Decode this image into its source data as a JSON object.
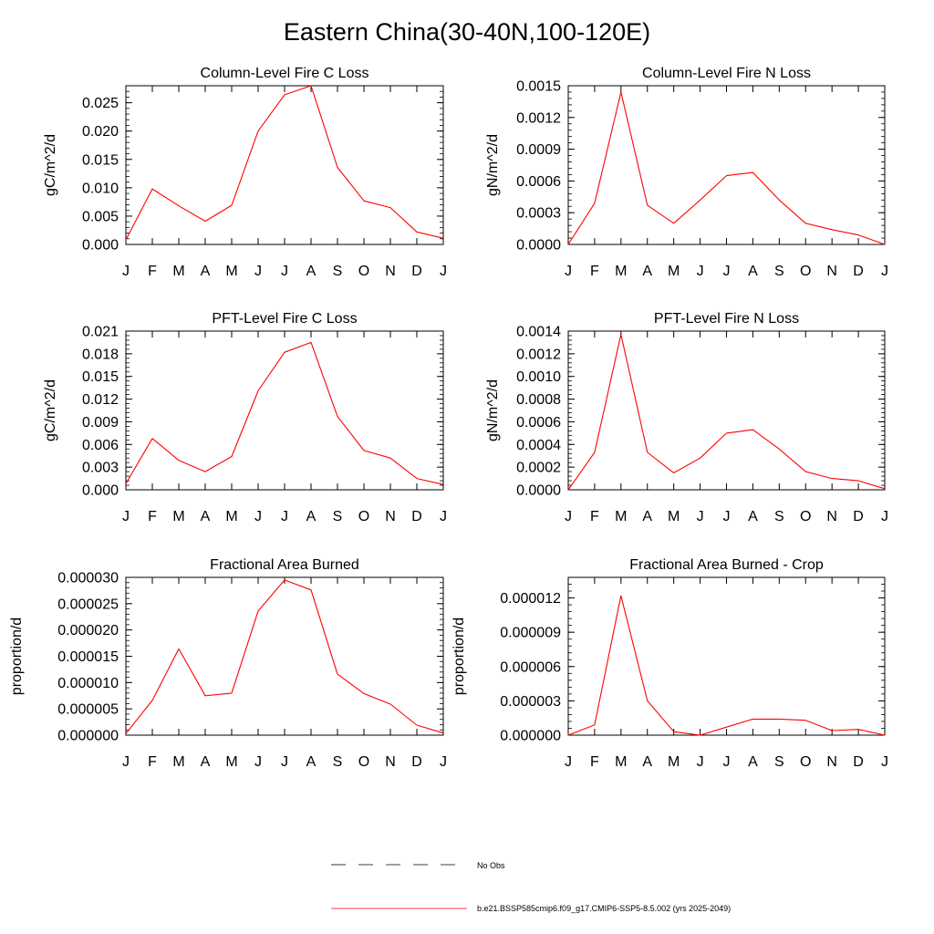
{
  "title": "Eastern China(30-40N,100-120E)",
  "legend": {
    "entries": [
      {
        "label": "No Obs",
        "style": "dashed",
        "color": "#000000"
      },
      {
        "label": "b.e21.BSSP585cmip6.f09_g17.CMIP6-SSP5-8.5.002 (yrs 2025-2049)",
        "style": "solid",
        "color": "#ff0000"
      }
    ]
  },
  "chart_data": [
    {
      "type": "line",
      "title": "Column-Level Fire C Loss",
      "ylabel": "gC/m^2/d",
      "xlabel": "",
      "categories": [
        "J",
        "F",
        "M",
        "A",
        "M",
        "J",
        "J",
        "A",
        "S",
        "O",
        "N",
        "D",
        "J"
      ],
      "ylim": [
        0,
        0.028
      ],
      "yticks": [
        "0.000",
        "0.005",
        "0.010",
        "0.015",
        "0.020",
        "0.025"
      ],
      "ytick_values": [
        0,
        0.005,
        0.01,
        0.015,
        0.02,
        0.025
      ],
      "series": [
        {
          "color": "#ff0000",
          "values": [
            0.0008,
            0.0098,
            0.0068,
            0.0041,
            0.0069,
            0.02,
            0.0264,
            0.028,
            0.0136,
            0.0077,
            0.0065,
            0.0022,
            0.0011
          ]
        }
      ]
    },
    {
      "type": "line",
      "title": "Column-Level Fire N Loss",
      "ylabel": "gN/m^2/d",
      "xlabel": "",
      "categories": [
        "J",
        "F",
        "M",
        "A",
        "M",
        "J",
        "J",
        "A",
        "S",
        "O",
        "N",
        "D",
        "J"
      ],
      "ylim": [
        0,
        0.0015
      ],
      "yticks": [
        "0.0000",
        "0.0003",
        "0.0006",
        "0.0009",
        "0.0012",
        "0.0015"
      ],
      "ytick_values": [
        0,
        0.0003,
        0.0006,
        0.0009,
        0.0012,
        0.0015
      ],
      "series": [
        {
          "color": "#ff0000",
          "values": [
            0.0,
            0.00039,
            0.00144,
            0.00037,
            0.0002,
            0.00042,
            0.00065,
            0.00068,
            0.00042,
            0.0002,
            0.00014,
            9e-05,
            0.0
          ]
        }
      ]
    },
    {
      "type": "line",
      "title": "PFT-Level Fire C Loss",
      "ylabel": "gC/m^2/d",
      "xlabel": "",
      "categories": [
        "J",
        "F",
        "M",
        "A",
        "M",
        "J",
        "J",
        "A",
        "S",
        "O",
        "N",
        "D",
        "J"
      ],
      "ylim": [
        0,
        0.021
      ],
      "yticks": [
        "0.000",
        "0.003",
        "0.006",
        "0.009",
        "0.012",
        "0.015",
        "0.018",
        "0.021"
      ],
      "ytick_values": [
        0,
        0.003,
        0.006,
        0.009,
        0.012,
        0.015,
        0.018,
        0.021
      ],
      "series": [
        {
          "color": "#ff0000",
          "values": [
            0.0008,
            0.0068,
            0.0039,
            0.0024,
            0.0044,
            0.0131,
            0.0182,
            0.0195,
            0.0097,
            0.0052,
            0.0042,
            0.0015,
            0.0007
          ]
        }
      ]
    },
    {
      "type": "line",
      "title": "PFT-Level Fire N Loss",
      "ylabel": "gN/m^2/d",
      "xlabel": "",
      "categories": [
        "J",
        "F",
        "M",
        "A",
        "M",
        "J",
        "J",
        "A",
        "S",
        "O",
        "N",
        "D",
        "J"
      ],
      "ylim": [
        0,
        0.0014
      ],
      "yticks": [
        "0.0000",
        "0.0002",
        "0.0004",
        "0.0006",
        "0.0008",
        "0.0010",
        "0.0012",
        "0.0014"
      ],
      "ytick_values": [
        0,
        0.0002,
        0.0004,
        0.0006,
        0.0008,
        0.001,
        0.0012,
        0.0014
      ],
      "series": [
        {
          "color": "#ff0000",
          "values": [
            0.0,
            0.00033,
            0.00137,
            0.00033,
            0.00015,
            0.00028,
            0.0005,
            0.00053,
            0.00036,
            0.00016,
            0.0001,
            8e-05,
            1e-05
          ]
        }
      ]
    },
    {
      "type": "line",
      "title": "Fractional Area Burned",
      "ylabel": "proportion/d",
      "xlabel": "",
      "categories": [
        "J",
        "F",
        "M",
        "A",
        "M",
        "J",
        "J",
        "A",
        "S",
        "O",
        "N",
        "D",
        "J"
      ],
      "ylim": [
        0,
        3e-05
      ],
      "yticks": [
        "0.000000",
        "0.000005",
        "0.000010",
        "0.000015",
        "0.000020",
        "0.000025",
        "0.000030"
      ],
      "ytick_values": [
        0,
        5e-06,
        1e-05,
        1.5e-05,
        2e-05,
        2.5e-05,
        3e-05
      ],
      "series": [
        {
          "color": "#ff0000",
          "values": [
            3e-07,
            6.6e-06,
            1.64e-05,
            7.5e-06,
            8e-06,
            2.36e-05,
            2.95e-05,
            2.76e-05,
            1.16e-05,
            7.9e-06,
            5.9e-06,
            1.9e-06,
            4e-07
          ]
        }
      ]
    },
    {
      "type": "line",
      "title": "Fractional Area Burned - Crop",
      "ylabel": "proportion/d",
      "xlabel": "",
      "categories": [
        "J",
        "F",
        "M",
        "A",
        "M",
        "J",
        "J",
        "A",
        "S",
        "O",
        "N",
        "D",
        "J"
      ],
      "ylim": [
        0,
        1.38e-05
      ],
      "yticks": [
        "0.000000",
        "0.000003",
        "0.000006",
        "0.000009",
        "0.000012"
      ],
      "ytick_values": [
        0,
        3e-06,
        6e-06,
        9e-06,
        1.2e-05
      ],
      "series": [
        {
          "color": "#ff0000",
          "values": [
            0.0,
            9e-07,
            1.22e-05,
            3e-06,
            3e-07,
            0.0,
            7e-07,
            1.4e-06,
            1.4e-06,
            1.3e-06,
            4e-07,
            5e-07,
            0.0
          ]
        }
      ]
    }
  ]
}
